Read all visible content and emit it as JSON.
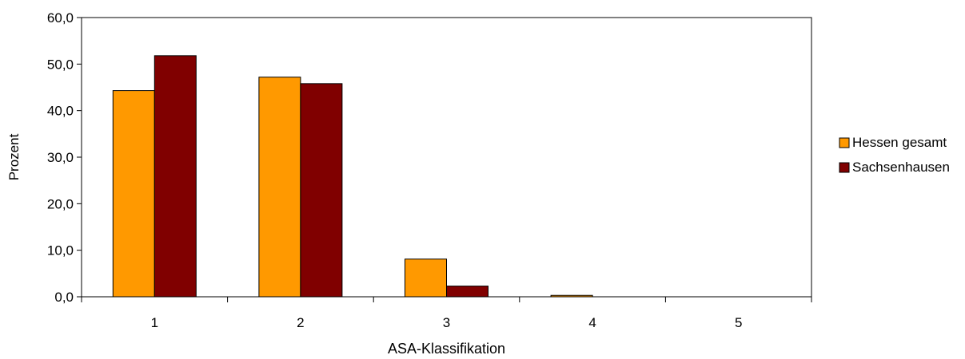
{
  "chart_data": {
    "type": "bar",
    "title": "",
    "xlabel": "ASA-Klassifikation",
    "ylabel": "Prozent",
    "categories": [
      "1",
      "2",
      "3",
      "4",
      "5"
    ],
    "series": [
      {
        "name": "Hessen gesamt",
        "color": "#FF9900",
        "values": [
          44.3,
          47.2,
          8.1,
          0.3,
          0.0
        ]
      },
      {
        "name": "Sachsenhausen",
        "color": "#800000",
        "values": [
          51.8,
          45.8,
          2.3,
          0.0,
          0.0
        ]
      }
    ],
    "ylim": [
      0,
      60
    ],
    "yticks": [
      "0,0",
      "10,0",
      "20,0",
      "30,0",
      "40,0",
      "50,0",
      "60,0"
    ],
    "ytick_values": [
      0,
      10,
      20,
      30,
      40,
      50,
      60
    ],
    "grid": false,
    "legend_position": "right"
  }
}
